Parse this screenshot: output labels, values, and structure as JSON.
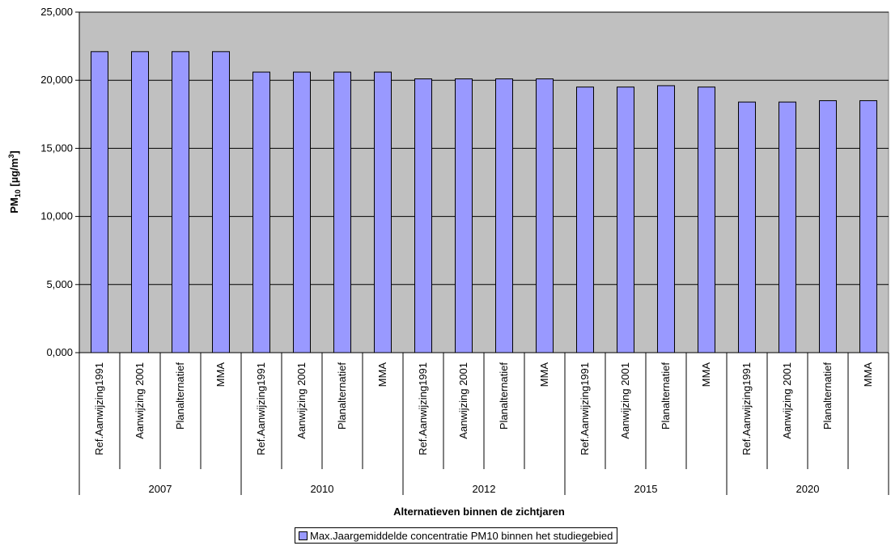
{
  "chart_data": {
    "type": "bar",
    "ylabel": {
      "main": "PM",
      "sub": "10",
      "unit_pre": " [µg/m",
      "unit_sup": "3",
      "unit_post": "]"
    },
    "xlabel": "Alternatieven binnen de zichtjaren",
    "ylim": [
      0,
      25
    ],
    "yticks": [
      {
        "value": 0,
        "label": "0,000"
      },
      {
        "value": 5,
        "label": "5,000"
      },
      {
        "value": 10,
        "label": "10,000"
      },
      {
        "value": 15,
        "label": "15,000"
      },
      {
        "value": 20,
        "label": "20,000"
      },
      {
        "value": 25,
        "label": "25,000"
      }
    ],
    "grid": true,
    "legend_position": "bottom",
    "colors": {
      "bar": "#9999ff",
      "plot_bg": "#c0c0c0"
    },
    "groups": [
      {
        "label": "2007",
        "categories": [
          "Ref.Aanwijzing1991",
          "Aanwijzing 2001",
          "Planalternatief",
          "MMA"
        ],
        "values": [
          22.1,
          22.1,
          22.1,
          22.1
        ]
      },
      {
        "label": "2010",
        "categories": [
          "Ref.Aanwijzing1991",
          "Aanwijzing 2001",
          "Planalternatief",
          "MMA"
        ],
        "values": [
          20.6,
          20.6,
          20.6,
          20.6
        ]
      },
      {
        "label": "2012",
        "categories": [
          "Ref.Aanwijzing1991",
          "Aanwijzing 2001",
          "Planalternatief",
          "MMA"
        ],
        "values": [
          20.1,
          20.1,
          20.1,
          20.1
        ]
      },
      {
        "label": "2015",
        "categories": [
          "Ref.Aanwijzing1991",
          "Aanwijzing 2001",
          "Planalternatief",
          "MMA"
        ],
        "values": [
          19.5,
          19.5,
          19.6,
          19.5
        ]
      },
      {
        "label": "2020",
        "categories": [
          "Ref.Aanwijzing1991",
          "Aanwijzing 2001",
          "Planalternatief",
          "MMA"
        ],
        "values": [
          18.4,
          18.4,
          18.5,
          18.5
        ]
      }
    ],
    "series": [
      {
        "name": "Max.Jaargemiddelde concentratie PM10 binnen het studiegebied"
      }
    ]
  }
}
